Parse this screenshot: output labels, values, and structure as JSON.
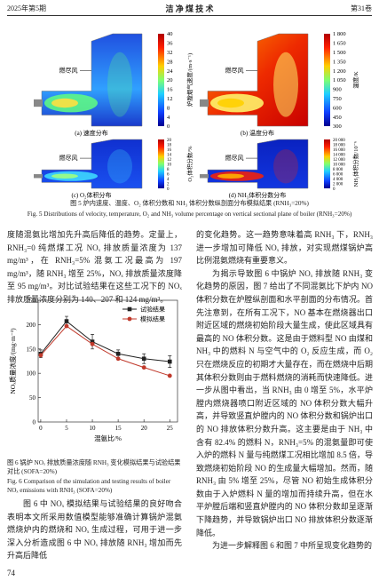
{
  "header": {
    "issue": "2025年第5期",
    "journal": "洁 净 煤 技 术",
    "volume": "第31卷"
  },
  "figure5": {
    "panels": [
      {
        "caption": "(a) 速度分布",
        "colorbar_label": "炉膛烟气速度/(m·s⁻¹)",
        "annotation": "燃尽风",
        "colorbar_ticks": [
          "40",
          "36",
          "32",
          "28",
          "24",
          "20",
          "16",
          "12",
          "8",
          "4",
          "0"
        ]
      },
      {
        "caption": "(b) 温度分布",
        "colorbar_label": "温度/K",
        "annotation": "燃尽风",
        "colorbar_ticks": [
          "1 800",
          "1 650",
          "1 500",
          "1 350",
          "1 200",
          "1 050",
          "900",
          "750",
          "600",
          "450",
          "300"
        ]
      },
      {
        "caption": "(c) O₂体积分布",
        "colorbar_label": "O₂体积分数/%",
        "annotation": "燃尽风",
        "colorbar_ticks": [
          "20",
          "18",
          "16",
          "14",
          "12",
          "10",
          "8",
          "6",
          "4",
          "2",
          "0"
        ]
      },
      {
        "caption": "(d) NH₃体积分数分布",
        "colorbar_label": "NH₃体积分数/10⁻⁶",
        "annotation": "燃尽风",
        "colorbar_ticks": [
          "20 000",
          "18 000",
          "16 000",
          "14 000",
          "12 000",
          "10 000",
          "8 000",
          "6 000",
          "4 000",
          "2 000",
          "0"
        ]
      }
    ],
    "caption_cn": "图 5  炉内速度、温度、O₂ 体积分数和 NH₃ 体积分数纵剖面分布模拟结果 (RNH₃=20%)",
    "caption_en": "Fig. 5   Distributions of velocity, temperature, O₂ and NH₃ volume percentage on vertical sectional plane of boiler (RNH₃=20%)"
  },
  "body": {
    "left_top": "度随混氨比增加先升高后降低的趋势。定量上，RNH₃=0 纯燃煤工况 NOₓ 排放质量浓度为 137 mg/m³，在 RNH₃=5% 混氨工况最高为 197 mg/m³，随 RNH₃ 增至 25%，NOₓ 排放质量浓度降至 95 mg/m³。对比试验结果在这些工况下的 NOₓ 排放质量浓度分别为 140、207 和 124 mg/m³。",
    "left_bottom": "图 6 中 NOₓ 模拟结果与试验结果的良好吻合表明本文所采用数值模型能够准确计算锅炉混氨燃烧炉内的燃烧和 NOₓ 生成过程，可用于进一步深入分析造成图 6 中 NOₓ 排放随 RNH₃ 增加而先升高后降低",
    "right": [
      "的变化趋势。这一趋势意味着高 RNH₃ 下，RNH₃ 进一步增加可降低 NOₓ 排放，对实现燃煤锅炉高比例混氨燃烧有重要意义。",
      "为揭示导致图 6 中锅炉 NOₓ 排放随 RNH₃ 变化趋势的原因，图 7 给出了不同混氨比下炉内 NO 体积分数在炉膛纵剖面和水平剖面的分布情况。首先注意到，在所有工况下，NO 基本在燃烧器出口附近区域的燃烧初始阶段大量生成，使此区域具有最高的 NO 体积分数。这是由于燃料型 NO 由煤和 NH₃ 中的燃料 N 与空气中的 O₂ 反应生成，而 O₂ 只在燃烧反应的初期才大量存在，而在燃烧中后期其体积分数则由于燃料燃烧的消耗而快速降低。进一步从图中看出，当 RNH₃ 由 0 增至 5%，水平炉膛内燃烧器喷口附近区域的 NO 体积分数大幅升高，并导致竖直炉膛内的 NO 体积分数和锅炉出口的 NO 排放体积分数升高。这主要是由于 NH₃ 中含有 82.4% 的燃料 N，RNH₃=5% 的混氨量即可使入炉的燃料 N 量与纯燃煤工况相比增加 8.5 倍，导致燃烧初始阶段 NO 的生成量大幅增加。然而，随 RNH₃ 由 5% 增至 25%，尽管 NO 初始生成体积分数由于入炉燃料 N 量的增加而持续升高，但在水平炉膛后端和竖直炉膛内的 NO 体积分数却呈逐渐下降趋势，并导致锅炉出口 NO 排放体积分数逐渐降低。",
      "为进一步解释图 6 和图 7 中所呈现变化趋势的"
    ]
  },
  "chart_data": {
    "type": "line",
    "x": [
      0,
      5,
      10,
      15,
      20,
      25
    ],
    "xlim": [
      -0.5,
      26.5
    ],
    "xticks": [
      0,
      5,
      10,
      15,
      20,
      25
    ],
    "ylim": [
      0,
      250
    ],
    "yticks": [
      0,
      50,
      100,
      150,
      200,
      250
    ],
    "xlabel": "混氨比/%",
    "ylabel": "NOₓ质量浓度/(mg·m⁻³)",
    "legend": "upper right",
    "series": [
      {
        "name": "试验结果",
        "color": "#222222",
        "marker": "square",
        "values": [
          140,
          207,
          165,
          140,
          130,
          124
        ],
        "errors": [
          8,
          10,
          15,
          8,
          10,
          12
        ]
      },
      {
        "name": "模拟结果",
        "color": "#c0392b",
        "marker": "circle",
        "values": [
          137,
          197,
          160,
          130,
          112,
          95
        ]
      }
    ]
  },
  "figure6": {
    "caption_cn": "图 6  锅炉 NOₓ 排放质量浓度随 RNH₃ 变化模拟结果与试验结果对比 (SOFA=20%)",
    "caption_en": "Fig. 6   Comparison of the simulation and testing results of boiler NOₓ emissions with RNH₃ (SOFA=20%)"
  },
  "page_number": "74"
}
